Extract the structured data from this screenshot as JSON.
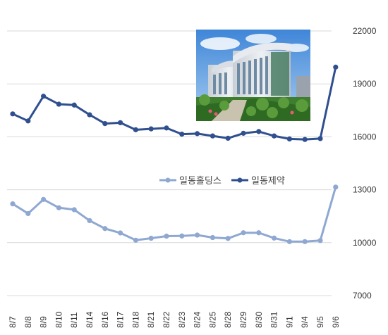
{
  "chart_data": {
    "type": "line",
    "title": "",
    "xlabel": "",
    "ylabel": "",
    "ylim": [
      7000,
      22000
    ],
    "yticks": [
      7000,
      10000,
      13000,
      16000,
      19000,
      22000
    ],
    "y_axis_side": "right",
    "grid": true,
    "legend_position": "center-right",
    "categories": [
      "8/7",
      "8/8",
      "8/9",
      "8/10",
      "8/11",
      "8/14",
      "8/16",
      "8/17",
      "8/18",
      "8/21",
      "8/22",
      "8/23",
      "8/24",
      "8/25",
      "8/28",
      "8/29",
      "8/30",
      "8/31",
      "9/1",
      "9/4",
      "9/5",
      "9/6"
    ],
    "series": [
      {
        "name": "일동홀딩스",
        "color": "#8fa8d2",
        "values": [
          12200,
          11650,
          12450,
          11980,
          11870,
          11250,
          10800,
          10550,
          10140,
          10250,
          10370,
          10380,
          10430,
          10290,
          10240,
          10560,
          10560,
          10260,
          10060,
          10060,
          10120,
          13150
        ]
      },
      {
        "name": "일동제약",
        "color": "#2f4f8f",
        "values": [
          17300,
          16900,
          18300,
          17850,
          17800,
          17250,
          16750,
          16800,
          16400,
          16450,
          16500,
          16150,
          16180,
          16050,
          15920,
          16200,
          16300,
          16050,
          15880,
          15850,
          15900,
          19950
        ]
      }
    ]
  }
}
